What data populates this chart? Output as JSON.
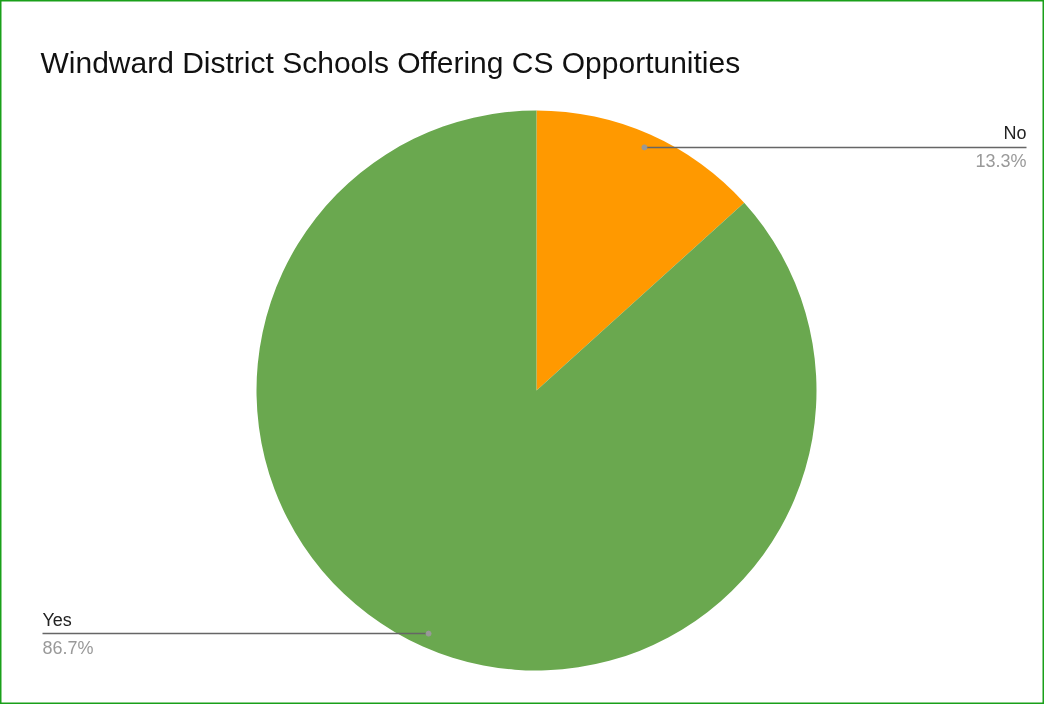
{
  "chart_data": {
    "type": "pie",
    "title": "Windward District Schools Offering CS Opportunities",
    "categories": [
      "No",
      "Yes"
    ],
    "values": [
      13.3,
      86.7
    ],
    "colors": [
      "#ff9900",
      "#6aa84f"
    ],
    "value_labels": [
      "13.3%",
      "86.7%"
    ]
  }
}
